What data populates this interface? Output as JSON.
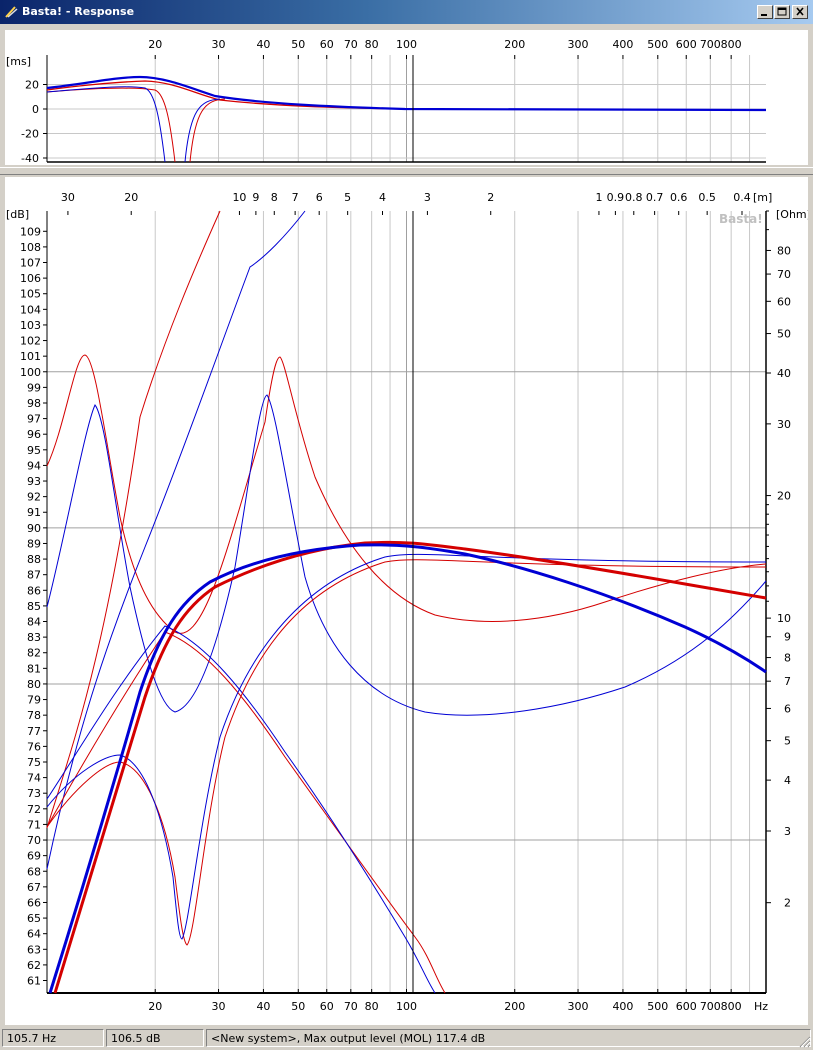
{
  "window": {
    "title": "Basta! - Response",
    "buttons": [
      "minimize",
      "maximize",
      "close"
    ]
  },
  "top_panel": {
    "y_unit": "[ms]",
    "y_ticks": [
      20,
      0,
      -20,
      -40
    ],
    "x_ticks": [
      20,
      30,
      40,
      50,
      60,
      70,
      80,
      100,
      200,
      300,
      400,
      500,
      600,
      700,
      800
    ]
  },
  "main_panel": {
    "y_unit_left": "[dB]",
    "y_unit_right": "[Ohm]",
    "distance_unit": "[m]",
    "x_unit": "Hz",
    "watermark": "Basta!",
    "left_ticks_start": 109,
    "left_ticks_end": 61,
    "right_ticks": [
      80,
      70,
      60,
      50,
      40,
      30,
      20,
      10,
      9,
      8,
      7,
      6,
      5,
      4,
      3,
      2
    ],
    "wavelength_ticks": [
      "30",
      "20",
      "10",
      "9",
      "8",
      "7",
      "6",
      "5",
      "4",
      "3",
      "2",
      "1",
      "0.9",
      "0.8",
      "0.7",
      "0.6",
      "0.5",
      "0.4"
    ],
    "x_ticks": [
      20,
      30,
      40,
      50,
      60,
      70,
      80,
      100,
      200,
      300,
      400,
      500,
      600,
      700,
      800
    ]
  },
  "cursor": {
    "frequency_hz": 105.7
  },
  "colors": {
    "left_channel": "#d40000",
    "right_channel": "#0000d4",
    "grid": "#c8c8c8",
    "title_gradient_start": "#0a246a",
    "title_gradient_end": "#a6caf0"
  },
  "status": {
    "frequency": "105.7 Hz",
    "level": "106.5 dB",
    "message": "<New system>, Max output level (MOL) 117.4 dB"
  }
}
